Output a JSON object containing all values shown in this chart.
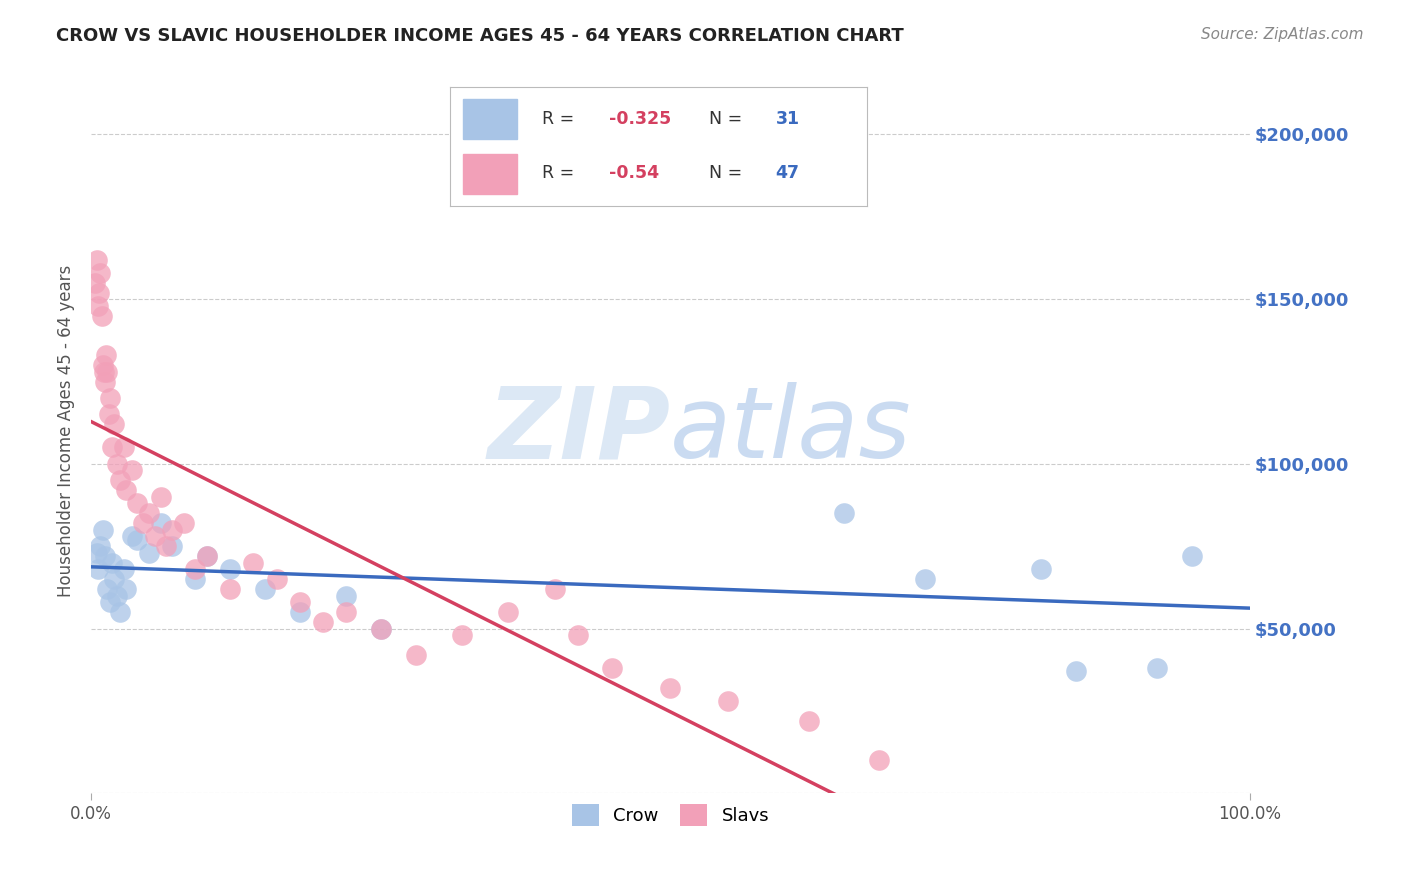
{
  "title": "CROW VS SLAVIC HOUSEHOLDER INCOME AGES 45 - 64 YEARS CORRELATION CHART",
  "source": "Source: ZipAtlas.com",
  "ylabel": "Householder Income Ages 45 - 64 years",
  "crow_R": -0.325,
  "crow_N": 31,
  "slavs_R": -0.54,
  "slavs_N": 47,
  "crow_color": "#a8c4e6",
  "slavs_color": "#f2a0b8",
  "crow_line_color": "#3a6abf",
  "slavs_line_color": "#d44060",
  "right_axis_color": "#4472c4",
  "legend_R_color": "#d44060",
  "legend_N_color": "#3a6abf",
  "watermark_color": "#dce8f5",
  "crow_x": [
    0.005,
    0.006,
    0.008,
    0.01,
    0.012,
    0.014,
    0.016,
    0.018,
    0.02,
    0.022,
    0.025,
    0.028,
    0.03,
    0.035,
    0.04,
    0.05,
    0.06,
    0.07,
    0.09,
    0.1,
    0.12,
    0.15,
    0.18,
    0.22,
    0.25,
    0.65,
    0.72,
    0.82,
    0.85,
    0.92,
    0.95
  ],
  "crow_y": [
    73000,
    68000,
    75000,
    80000,
    72000,
    62000,
    58000,
    70000,
    65000,
    60000,
    55000,
    68000,
    62000,
    78000,
    77000,
    73000,
    82000,
    75000,
    65000,
    72000,
    68000,
    62000,
    55000,
    60000,
    50000,
    85000,
    65000,
    68000,
    37000,
    38000,
    72000
  ],
  "slavs_x": [
    0.003,
    0.005,
    0.006,
    0.007,
    0.008,
    0.009,
    0.01,
    0.011,
    0.012,
    0.013,
    0.014,
    0.015,
    0.016,
    0.018,
    0.02,
    0.022,
    0.025,
    0.028,
    0.03,
    0.035,
    0.04,
    0.045,
    0.05,
    0.055,
    0.06,
    0.065,
    0.07,
    0.08,
    0.09,
    0.1,
    0.12,
    0.14,
    0.16,
    0.18,
    0.2,
    0.22,
    0.25,
    0.28,
    0.32,
    0.36,
    0.4,
    0.42,
    0.45,
    0.5,
    0.55,
    0.62,
    0.68
  ],
  "slavs_y": [
    155000,
    162000,
    148000,
    152000,
    158000,
    145000,
    130000,
    128000,
    125000,
    133000,
    128000,
    115000,
    120000,
    105000,
    112000,
    100000,
    95000,
    105000,
    92000,
    98000,
    88000,
    82000,
    85000,
    78000,
    90000,
    75000,
    80000,
    82000,
    68000,
    72000,
    62000,
    70000,
    65000,
    58000,
    52000,
    55000,
    50000,
    42000,
    48000,
    55000,
    62000,
    48000,
    38000,
    32000,
    28000,
    22000,
    10000
  ],
  "ylim": [
    0,
    220000
  ],
  "xlim": [
    0.0,
    1.0
  ],
  "yticks": [
    0,
    50000,
    100000,
    150000,
    200000
  ],
  "ytick_labels": [
    "",
    "$50,000",
    "$100,000",
    "$150,000",
    "$200,000"
  ],
  "background_color": "#ffffff",
  "grid_color": "#cccccc"
}
